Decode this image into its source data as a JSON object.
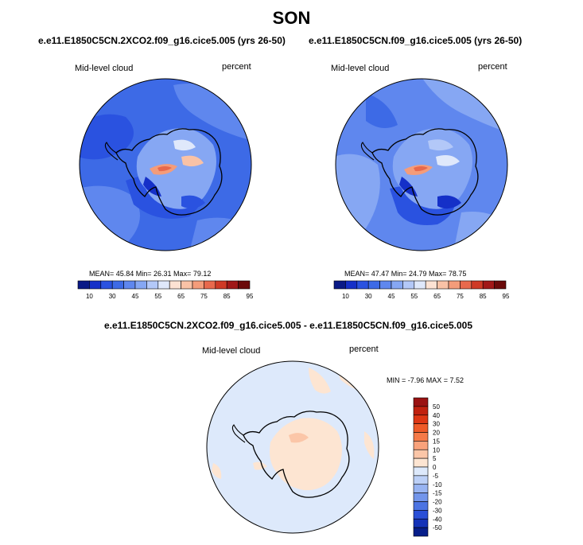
{
  "page_title": "SON",
  "panels": [
    {
      "case": "e.e11.E1850C5CN.2XCO2.f09_g16.cice5.005 (yrs 26-50)",
      "variable": "Mid-level cloud",
      "units": "percent",
      "stats": "MEAN=  45.84  Min=  26.31  Max=  79.12"
    },
    {
      "case": "e.e11.E1850C5CN.f09_g16.cice5.005 (yrs 26-50)",
      "variable": "Mid-level cloud",
      "units": "percent",
      "stats": "MEAN=  47.47  Min=  24.79  Max=  78.75"
    },
    {
      "case": "e.e11.E1850C5CN.2XCO2.f09_g16.cice5.005 - e.e11.E1850C5CN.f09_g16.cice5.005",
      "variable": "Mid-level cloud",
      "units": "percent",
      "stats": "MIN = -7.96 MAX =  7.52"
    }
  ],
  "colorbar_abs": {
    "labels": [
      "10",
      "30",
      "45",
      "55",
      "65",
      "75",
      "85",
      "95"
    ],
    "colors": [
      "#0a1a86",
      "#1530c8",
      "#2a52e0",
      "#3d6ae6",
      "#5f87ee",
      "#86a7f3",
      "#b3c8f8",
      "#dfe8fb",
      "#fde2d3",
      "#f9c2a6",
      "#f49c7a",
      "#e8694d",
      "#cf3a26",
      "#a11818",
      "#6b0a0a"
    ]
  },
  "colorbar_diff": {
    "labels": [
      "50",
      "40",
      "30",
      "20",
      "15",
      "10",
      "5",
      "0",
      "-5",
      "-10",
      "-15",
      "-20",
      "-30",
      "-40",
      "-50"
    ],
    "colors": [
      "#9a1212",
      "#c0210f",
      "#dd3614",
      "#ee5a28",
      "#f57a48",
      "#f9a27b",
      "#fbc6a8",
      "#fde5d2",
      "#dde9fb",
      "#bcd0f7",
      "#98b4f2",
      "#7295eb",
      "#4c74e3",
      "#2a4fd7",
      "#1432b8",
      "#071e8a"
    ]
  },
  "chart_data": [
    {
      "type": "heatmap",
      "title": "e.e11.E1850C5CN.2XCO2.f09_g16.cice5.005 (yrs 26-50)",
      "variable": "Mid-level cloud",
      "units": "percent",
      "projection": "south polar stereographic",
      "mean": 45.84,
      "min": 26.31,
      "max": 79.12,
      "levels": [
        10,
        30,
        45,
        55,
        65,
        75,
        85,
        95
      ]
    },
    {
      "type": "heatmap",
      "title": "e.e11.E1850C5CN.f09_g16.cice5.005 (yrs 26-50)",
      "variable": "Mid-level cloud",
      "units": "percent",
      "projection": "south polar stereographic",
      "mean": 47.47,
      "min": 24.79,
      "max": 78.75,
      "levels": [
        10,
        30,
        45,
        55,
        65,
        75,
        85,
        95
      ]
    },
    {
      "type": "heatmap",
      "title": "e.e11.E1850C5CN.2XCO2.f09_g16.cice5.005 - e.e11.E1850C5CN.f09_g16.cice5.005",
      "variable": "Mid-level cloud",
      "units": "percent",
      "projection": "south polar stereographic",
      "min": -7.96,
      "max": 7.52,
      "levels": [
        50,
        40,
        30,
        20,
        15,
        10,
        5,
        0,
        -5,
        -10,
        -15,
        -20,
        -30,
        -40,
        -50
      ]
    }
  ]
}
